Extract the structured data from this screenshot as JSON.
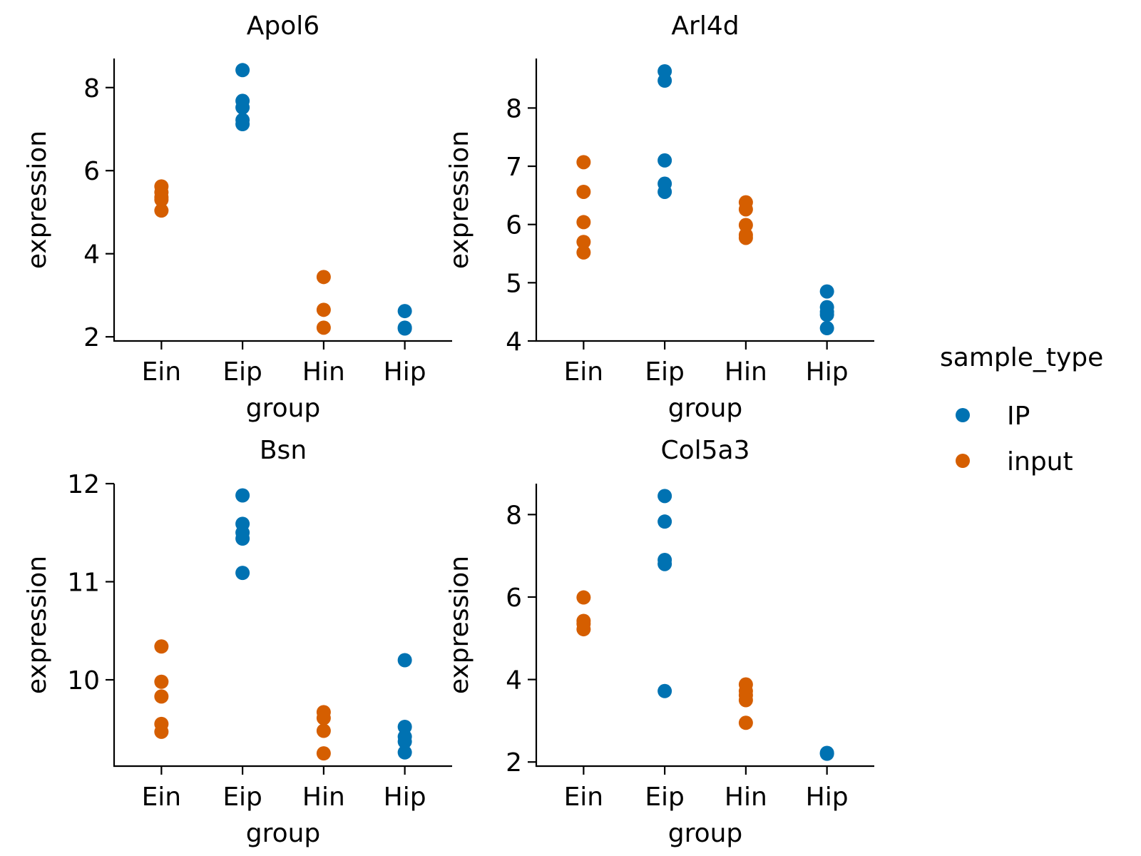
{
  "chart_data": [
    {
      "type": "scatter",
      "title": "Apol6",
      "xlabel": "group",
      "ylabel": "expression",
      "categories": [
        "Ein",
        "Eip",
        "Hin",
        "Hip"
      ],
      "yticks": [
        2,
        4,
        6,
        8
      ],
      "ylim": [
        1.9,
        8.7
      ],
      "series": [
        {
          "sample_type": "IP",
          "points": [
            {
              "group": "Eip",
              "y": 8.42
            },
            {
              "group": "Eip",
              "y": 7.68
            },
            {
              "group": "Eip",
              "y": 7.52
            },
            {
              "group": "Eip",
              "y": 7.22
            },
            {
              "group": "Eip",
              "y": 7.12
            },
            {
              "group": "Hip",
              "y": 2.62
            },
            {
              "group": "Hip",
              "y": 2.22
            },
            {
              "group": "Hip",
              "y": 2.2
            }
          ]
        },
        {
          "sample_type": "input",
          "points": [
            {
              "group": "Ein",
              "y": 5.62
            },
            {
              "group": "Ein",
              "y": 5.48
            },
            {
              "group": "Ein",
              "y": 5.36
            },
            {
              "group": "Ein",
              "y": 5.3
            },
            {
              "group": "Ein",
              "y": 5.04
            },
            {
              "group": "Hin",
              "y": 3.44
            },
            {
              "group": "Hin",
              "y": 2.65
            },
            {
              "group": "Hin",
              "y": 2.22
            }
          ]
        }
      ]
    },
    {
      "type": "scatter",
      "title": "Arl4d",
      "xlabel": "group",
      "ylabel": "expression",
      "categories": [
        "Ein",
        "Eip",
        "Hin",
        "Hip"
      ],
      "yticks": [
        4,
        5,
        6,
        7,
        8
      ],
      "ylim": [
        4.0,
        8.85
      ],
      "series": [
        {
          "sample_type": "IP",
          "points": [
            {
              "group": "Eip",
              "y": 8.63
            },
            {
              "group": "Eip",
              "y": 8.47
            },
            {
              "group": "Eip",
              "y": 7.1
            },
            {
              "group": "Eip",
              "y": 6.7
            },
            {
              "group": "Eip",
              "y": 6.56
            },
            {
              "group": "Hip",
              "y": 4.85
            },
            {
              "group": "Hip",
              "y": 4.58
            },
            {
              "group": "Hip",
              "y": 4.5
            },
            {
              "group": "Hip",
              "y": 4.45
            },
            {
              "group": "Hip",
              "y": 4.22
            }
          ]
        },
        {
          "sample_type": "input",
          "points": [
            {
              "group": "Ein",
              "y": 7.07
            },
            {
              "group": "Ein",
              "y": 6.56
            },
            {
              "group": "Ein",
              "y": 6.04
            },
            {
              "group": "Ein",
              "y": 5.7
            },
            {
              "group": "Ein",
              "y": 5.52
            },
            {
              "group": "Hin",
              "y": 6.38
            },
            {
              "group": "Hin",
              "y": 6.26
            },
            {
              "group": "Hin",
              "y": 5.99
            },
            {
              "group": "Hin",
              "y": 5.82
            },
            {
              "group": "Hin",
              "y": 5.77
            }
          ]
        }
      ]
    },
    {
      "type": "scatter",
      "title": "Bsn",
      "xlabel": "group",
      "ylabel": "expression",
      "categories": [
        "Ein",
        "Eip",
        "Hin",
        "Hip"
      ],
      "yticks": [
        10,
        11,
        12
      ],
      "ylim": [
        9.12,
        12.0
      ],
      "series": [
        {
          "sample_type": "IP",
          "points": [
            {
              "group": "Eip",
              "y": 11.88
            },
            {
              "group": "Eip",
              "y": 11.59
            },
            {
              "group": "Eip",
              "y": 11.5
            },
            {
              "group": "Eip",
              "y": 11.44
            },
            {
              "group": "Eip",
              "y": 11.09
            },
            {
              "group": "Hip",
              "y": 10.2
            },
            {
              "group": "Hip",
              "y": 9.52
            },
            {
              "group": "Hip",
              "y": 9.42
            },
            {
              "group": "Hip",
              "y": 9.37
            },
            {
              "group": "Hip",
              "y": 9.26
            }
          ]
        },
        {
          "sample_type": "input",
          "points": [
            {
              "group": "Ein",
              "y": 10.34
            },
            {
              "group": "Ein",
              "y": 9.98
            },
            {
              "group": "Ein",
              "y": 9.83
            },
            {
              "group": "Ein",
              "y": 9.55
            },
            {
              "group": "Ein",
              "y": 9.47
            },
            {
              "group": "Hin",
              "y": 9.67
            },
            {
              "group": "Hin",
              "y": 9.61
            },
            {
              "group": "Hin",
              "y": 9.48
            },
            {
              "group": "Hin",
              "y": 9.25
            }
          ]
        }
      ]
    },
    {
      "type": "scatter",
      "title": "Col5a3",
      "xlabel": "group",
      "ylabel": "expression",
      "categories": [
        "Ein",
        "Eip",
        "Hin",
        "Hip"
      ],
      "yticks": [
        2,
        4,
        6,
        8
      ],
      "ylim": [
        1.9,
        8.75
      ],
      "series": [
        {
          "sample_type": "IP",
          "points": [
            {
              "group": "Eip",
              "y": 8.45
            },
            {
              "group": "Eip",
              "y": 7.83
            },
            {
              "group": "Eip",
              "y": 6.9
            },
            {
              "group": "Eip",
              "y": 6.8
            },
            {
              "group": "Eip",
              "y": 3.72
            },
            {
              "group": "Hip",
              "y": 2.22
            },
            {
              "group": "Hip",
              "y": 2.2
            }
          ]
        },
        {
          "sample_type": "input",
          "points": [
            {
              "group": "Ein",
              "y": 5.99
            },
            {
              "group": "Ein",
              "y": 5.42
            },
            {
              "group": "Ein",
              "y": 5.35
            },
            {
              "group": "Ein",
              "y": 5.22
            },
            {
              "group": "Hin",
              "y": 3.88
            },
            {
              "group": "Hin",
              "y": 3.72
            },
            {
              "group": "Hin",
              "y": 3.62
            },
            {
              "group": "Hin",
              "y": 3.5
            },
            {
              "group": "Hin",
              "y": 2.95
            }
          ]
        }
      ]
    }
  ],
  "legend": {
    "title": "sample_type",
    "position": "right",
    "items": [
      {
        "label": "IP",
        "color": "#0072B2"
      },
      {
        "label": "input",
        "color": "#D55E00"
      }
    ]
  },
  "colors": {
    "IP": "#0072B2",
    "input": "#D55E00"
  }
}
